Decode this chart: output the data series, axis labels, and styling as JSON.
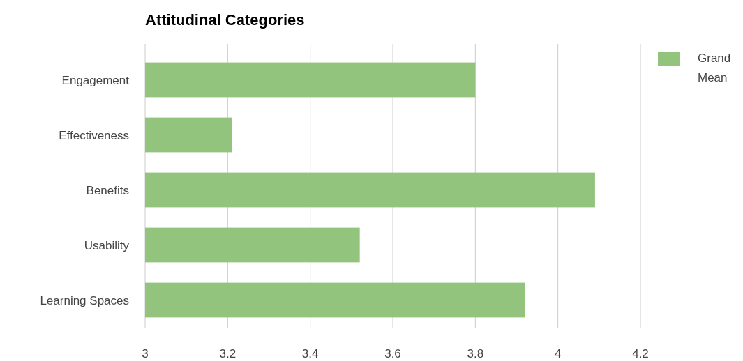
{
  "chart_data": {
    "type": "bar",
    "orientation": "horizontal",
    "title": "Attitudinal Categories",
    "categories": [
      "Engagement",
      "Effectiveness",
      "Benefits",
      "Usability",
      "Learning Spaces"
    ],
    "series": [
      {
        "name": "Grand Mean",
        "color": "#93c47d",
        "values": [
          3.8,
          3.21,
          4.09,
          3.52,
          3.92
        ]
      }
    ],
    "xlim": [
      3,
      4.2
    ],
    "xticks": [
      3,
      3.2,
      3.4,
      3.6,
      3.8,
      4,
      4.2
    ],
    "grid": "x",
    "legend": "top right"
  }
}
